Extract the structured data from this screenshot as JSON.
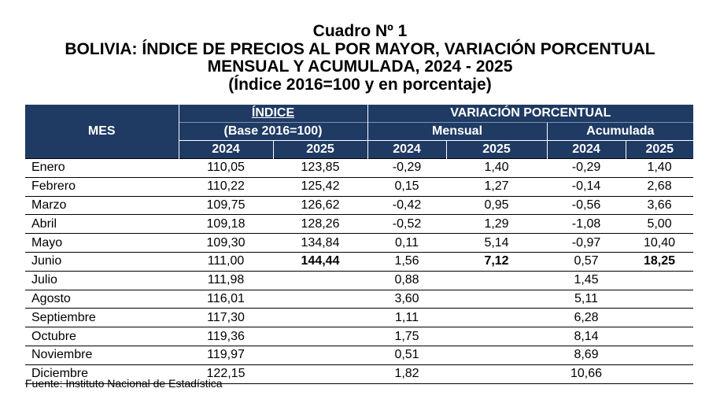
{
  "title": {
    "line1": "Cuadro Nº 1",
    "line2": "BOLIVIA: ÍNDICE DE PRECIOS AL POR MAYOR, VARIACIÓN PORCENTUAL",
    "line3": "MENSUAL Y ACUMULADA, 2024 - 2025",
    "line4": "(Índice 2016=100 y en porcentaje)"
  },
  "header": {
    "mes": "MES",
    "indice": "ÍNDICE",
    "base": "(Base 2016=100)",
    "variacion": "VARIACIÓN PORCENTUAL",
    "mensual": "Mensual",
    "acumulada": "Acumulada",
    "years": [
      "2024",
      "2025",
      "2024",
      "2025",
      "2024",
      "2025"
    ]
  },
  "rows": [
    [
      "Enero",
      "110,05",
      "123,85",
      "-0,29",
      "1,40",
      "-0,29",
      "1,40"
    ],
    [
      "Febrero",
      "110,22",
      "125,42",
      "0,15",
      "1,27",
      "-0,14",
      "2,68"
    ],
    [
      "Marzo",
      "109,75",
      "126,62",
      "-0,42",
      "0,95",
      "-0,56",
      "3,66"
    ],
    [
      "Abril",
      "109,18",
      "128,26",
      "-0,52",
      "1,29",
      "-1,08",
      "5,00"
    ],
    [
      "Mayo",
      "109,30",
      "134,84",
      "0,11",
      "5,14",
      "-0,97",
      "10,40"
    ],
    [
      "Junio",
      "111,00",
      "144,44",
      "1,56",
      "7,12",
      "0,57",
      "18,25"
    ],
    [
      "Julio",
      "111,98",
      "",
      "0,88",
      "",
      "1,45",
      ""
    ],
    [
      "Agosto",
      "116,01",
      "",
      "3,60",
      "",
      "5,11",
      ""
    ],
    [
      "Septiembre",
      "117,30",
      "",
      "1,11",
      "",
      "6,28",
      ""
    ],
    [
      "Octubre",
      "119,36",
      "",
      "1,75",
      "",
      "8,14",
      ""
    ],
    [
      "Noviembre",
      "119,97",
      "",
      "0,51",
      "",
      "8,69",
      ""
    ],
    [
      "Diciembre",
      "122,15",
      "",
      "1,82",
      "",
      "10,66",
      ""
    ]
  ],
  "source": "Fuente: Instituto Nacional de Estadística"
}
